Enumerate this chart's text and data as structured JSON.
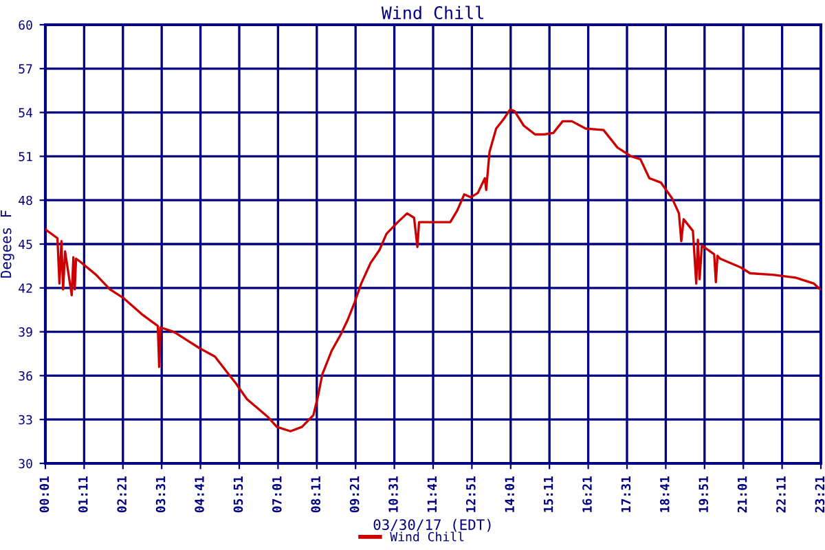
{
  "chart_data": {
    "type": "line",
    "title": "Wind Chill",
    "xlabel": "03/30/17 (EDT)",
    "ylabel": "Degees F",
    "series": [
      {
        "name": "Wind Chill",
        "color": "#cc0000",
        "x": [
          0.02,
          0.38,
          0.44,
          0.5,
          0.55,
          0.61,
          0.81,
          0.86,
          0.9,
          0.94,
          1.06,
          1.54,
          1.96,
          2.37,
          2.92,
          3.4,
          3.44,
          3.48,
          3.88,
          4.64,
          5.12,
          5.53,
          5.74,
          6.08,
          6.7,
          6.98,
          7.39,
          7.74,
          8.08,
          8.22,
          8.35,
          8.63,
          8.9,
          9.11,
          9.32,
          9.52,
          9.8,
          10.07,
          10.28,
          10.62,
          10.9,
          11.11,
          11.21,
          11.26,
          12.2,
          12.41,
          12.62,
          12.82,
          13.03,
          13.24,
          13.28,
          13.38,
          13.58,
          13.79,
          14.0,
          14.13,
          14.41,
          14.75,
          15.03,
          15.3,
          15.58,
          15.86,
          16.27,
          16.81,
          17.23,
          17.64,
          17.92,
          18.19,
          18.54,
          18.88,
          19.08,
          19.15,
          19.22,
          19.5,
          19.6,
          19.65,
          19.7,
          19.77,
          20.14,
          20.19,
          20.24,
          20.32,
          20.94,
          21.22,
          21.9,
          22.59,
          23.14,
          23.33
        ],
        "values": [
          46.0,
          45.4,
          42.3,
          45.2,
          41.9,
          44.5,
          41.5,
          44.1,
          41.9,
          44.0,
          43.8,
          42.9,
          41.9,
          41.3,
          40.2,
          39.4,
          36.6,
          39.3,
          39.0,
          37.9,
          37.3,
          36.1,
          35.5,
          34.4,
          33.2,
          32.5,
          32.2,
          32.5,
          33.3,
          34.6,
          36.1,
          37.7,
          38.8,
          39.8,
          41.0,
          42.3,
          43.7,
          44.6,
          45.7,
          46.5,
          47.1,
          46.8,
          44.8,
          46.5,
          46.5,
          47.3,
          48.4,
          48.2,
          48.5,
          49.5,
          48.7,
          51.3,
          52.9,
          53.5,
          54.2,
          54.1,
          53.1,
          52.5,
          52.5,
          52.6,
          53.4,
          53.4,
          52.9,
          52.8,
          51.6,
          51.0,
          50.8,
          49.5,
          49.2,
          48.1,
          47.1,
          45.2,
          46.7,
          45.9,
          42.3,
          45.3,
          42.6,
          44.9,
          44.3,
          42.4,
          44.2,
          44.0,
          43.4,
          43.0,
          42.9,
          42.7,
          42.3,
          41.9
        ]
      }
    ],
    "xlim": [
      0.0167,
      23.35
    ],
    "xticks": [
      {
        "value": 0.0167,
        "label": "00:01"
      },
      {
        "value": 1.1833,
        "label": "01:11"
      },
      {
        "value": 2.35,
        "label": "02:21"
      },
      {
        "value": 3.5167,
        "label": "03:31"
      },
      {
        "value": 4.6833,
        "label": "04:41"
      },
      {
        "value": 5.85,
        "label": "05:51"
      },
      {
        "value": 7.0167,
        "label": "07:01"
      },
      {
        "value": 8.1833,
        "label": "08:11"
      },
      {
        "value": 9.35,
        "label": "09:21"
      },
      {
        "value": 10.5167,
        "label": "10:31"
      },
      {
        "value": 11.6833,
        "label": "11:41"
      },
      {
        "value": 12.85,
        "label": "12:51"
      },
      {
        "value": 14.0167,
        "label": "14:01"
      },
      {
        "value": 15.1833,
        "label": "15:11"
      },
      {
        "value": 16.35,
        "label": "16:21"
      },
      {
        "value": 17.5167,
        "label": "17:31"
      },
      {
        "value": 18.6833,
        "label": "18:41"
      },
      {
        "value": 19.85,
        "label": "19:51"
      },
      {
        "value": 21.0167,
        "label": "21:01"
      },
      {
        "value": 22.1833,
        "label": "22:11"
      },
      {
        "value": 23.35,
        "label": "23:21"
      }
    ],
    "ylim": [
      30,
      60
    ],
    "yticks": [
      30,
      33,
      36,
      39,
      42,
      45,
      48,
      51,
      54,
      57,
      60
    ],
    "grid": true,
    "legend": "bottom",
    "line_style": "solid",
    "marker": "none"
  }
}
